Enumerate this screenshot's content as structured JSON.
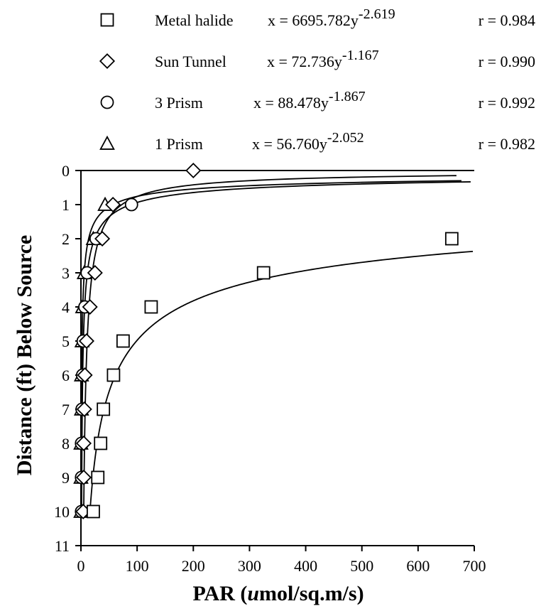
{
  "chart_data": {
    "type": "scatter",
    "xlabel_prefix": "PAR (",
    "xlabel_italic": "u",
    "xlabel_suffix": "mol/sq.m/s)",
    "ylabel": "Distance (ft) Below Source",
    "xlim": [
      0,
      700
    ],
    "ylim": [
      0,
      11
    ],
    "y_inverted": true,
    "x_ticks": [
      0,
      100,
      200,
      300,
      400,
      500,
      600,
      700
    ],
    "y_ticks": [
      0,
      1,
      2,
      3,
      4,
      5,
      6,
      7,
      8,
      9,
      10,
      11
    ],
    "grid": false,
    "legend_placement": "top",
    "series": [
      {
        "name": "Metal halide",
        "marker": "square",
        "equation": "x = 6695.782y",
        "exponent": "-2.619",
        "r": "r = 0.984",
        "fit": {
          "a": 6695.782,
          "b": -2.619
        },
        "points": [
          {
            "x": 660,
            "y": 2
          },
          {
            "x": 325,
            "y": 3
          },
          {
            "x": 125,
            "y": 4
          },
          {
            "x": 75,
            "y": 5
          },
          {
            "x": 58,
            "y": 6
          },
          {
            "x": 40,
            "y": 7
          },
          {
            "x": 35,
            "y": 8
          },
          {
            "x": 30,
            "y": 9
          },
          {
            "x": 22,
            "y": 10
          }
        ]
      },
      {
        "name": "Sun Tunnel",
        "marker": "diamond",
        "equation": "x = 72.736y",
        "exponent": "-1.167",
        "r": "r = 0.990",
        "fit": {
          "a": 72.736,
          "b": -1.167
        },
        "points": [
          {
            "x": 200,
            "y": 0
          },
          {
            "x": 57,
            "y": 1
          },
          {
            "x": 38,
            "y": 2
          },
          {
            "x": 25,
            "y": 3
          },
          {
            "x": 16,
            "y": 4
          },
          {
            "x": 10,
            "y": 5
          },
          {
            "x": 7,
            "y": 6
          },
          {
            "x": 6,
            "y": 7
          },
          {
            "x": 5,
            "y": 8
          },
          {
            "x": 5,
            "y": 9
          },
          {
            "x": 4,
            "y": 10
          }
        ]
      },
      {
        "name": "3 Prism",
        "marker": "circle",
        "equation": "x = 88.478y",
        "exponent": "-1.867",
        "r": "r = 0.992",
        "fit": {
          "a": 88.478,
          "b": -1.867
        },
        "points": [
          {
            "x": 90,
            "y": 1
          },
          {
            "x": 27,
            "y": 2
          },
          {
            "x": 11,
            "y": 3
          },
          {
            "x": 7,
            "y": 4
          },
          {
            "x": 4,
            "y": 5
          },
          {
            "x": 3,
            "y": 6
          },
          {
            "x": 2,
            "y": 7
          },
          {
            "x": 1,
            "y": 8
          },
          {
            "x": 1,
            "y": 9
          },
          {
            "x": 1,
            "y": 10
          }
        ]
      },
      {
        "name": "1 Prism",
        "marker": "triangle",
        "equation": "x = 56.760y",
        "exponent": "-2.052",
        "r": "r = 0.982",
        "fit": {
          "a": 56.76,
          "b": -2.052
        },
        "points": [
          {
            "x": 43,
            "y": 1
          },
          {
            "x": 22,
            "y": 2
          },
          {
            "x": 6,
            "y": 3
          },
          {
            "x": 3,
            "y": 4
          },
          {
            "x": 2,
            "y": 5
          },
          {
            "x": 1,
            "y": 6
          },
          {
            "x": 1,
            "y": 7
          },
          {
            "x": 0,
            "y": 8
          },
          {
            "x": 0,
            "y": 9
          },
          {
            "x": 0,
            "y": 10
          }
        ]
      }
    ]
  }
}
